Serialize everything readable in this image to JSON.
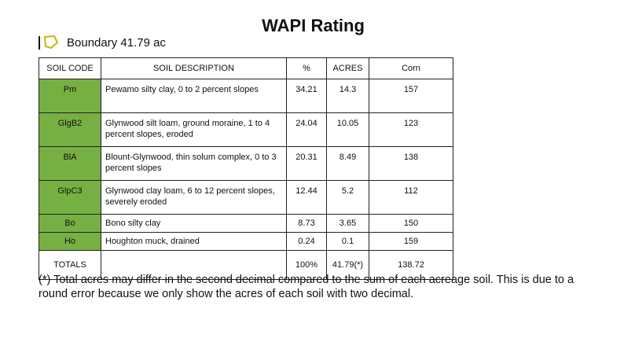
{
  "title": "WAPI Rating",
  "boundary_label": "Boundary 41.79 ac",
  "colors": {
    "code_cell": "#76b043",
    "boundary_icon": "#c8b800"
  },
  "table": {
    "headers": [
      "SOIL CODE",
      "SOIL DESCRIPTION",
      "%",
      "ACRES",
      "Corn"
    ],
    "rows": [
      {
        "code": "Pm",
        "desc": "Pewamo silty clay, 0 to 2 percent slopes",
        "pct": "34.21",
        "acres": "14.3",
        "corn": "157"
      },
      {
        "code": "GlgB2",
        "desc": "Glynwood silt loam, ground moraine, 1 to 4 percent slopes, eroded",
        "pct": "24.04",
        "acres": "10.05",
        "corn": "123"
      },
      {
        "code": "BlA",
        "desc": "Blount-Glynwood, thin solum complex, 0 to 3 percent slopes",
        "pct": "20.31",
        "acres": "8.49",
        "corn": "138"
      },
      {
        "code": "GlpC3",
        "desc": "Glynwood clay loam, 6 to 12 percent slopes, severely eroded",
        "pct": "12.44",
        "acres": "5.2",
        "corn": "112"
      },
      {
        "code": "Bo",
        "desc": "Bono silty clay",
        "pct": "8.73",
        "acres": "3.65",
        "corn": "150"
      },
      {
        "code": "Ho",
        "desc": "Houghton muck, drained",
        "pct": "0.24",
        "acres": "0.1",
        "corn": "159"
      }
    ],
    "totals": {
      "label": "TOTALS",
      "desc": "",
      "pct": "100%",
      "acres": "41.79(*)",
      "corn": "138.72"
    }
  },
  "footnote": "(*) Total acres may differ in the second decimal compared to the sum of each acreage soil. This is due to a round error because we only show the acres of each soil with two decimal."
}
